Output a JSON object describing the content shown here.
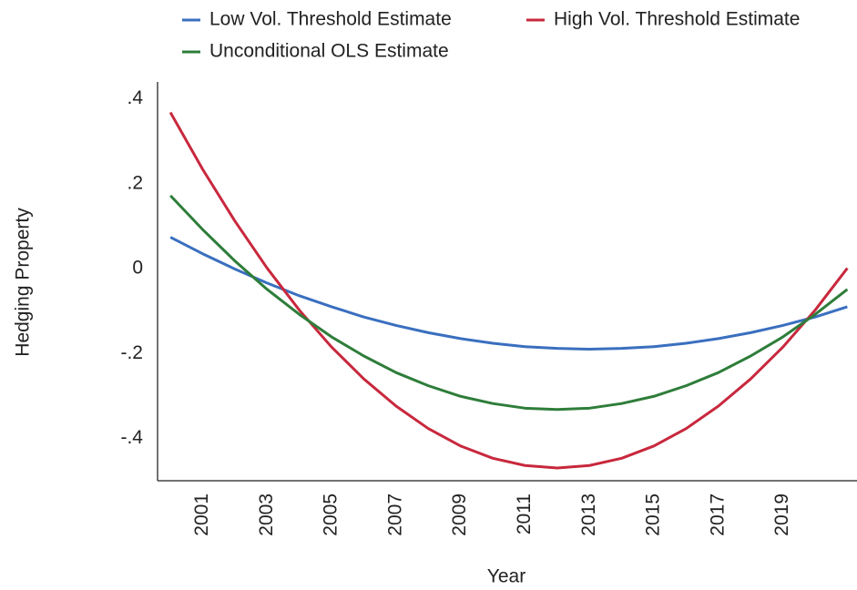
{
  "chart_data": {
    "type": "line",
    "x_label": "Year",
    "y_label": "Hedging Property",
    "x": [
      2000,
      2001,
      2002,
      2003,
      2004,
      2005,
      2006,
      2007,
      2008,
      2009,
      2010,
      2011,
      2012,
      2013,
      2014,
      2015,
      2016,
      2017,
      2018,
      2019,
      2020,
      2021
    ],
    "series": [
      {
        "name": "Low Vol. Threshold Estimate",
        "color": "#3a6fbf",
        "values": [
          0.074,
          0.035,
          -0.001,
          -0.034,
          -0.064,
          -0.09,
          -0.114,
          -0.134,
          -0.151,
          -0.165,
          -0.176,
          -0.184,
          -0.188,
          -0.19,
          -0.188,
          -0.184,
          -0.176,
          -0.165,
          -0.151,
          -0.134,
          -0.114,
          -0.09
        ]
      },
      {
        "name": "High Vol. Threshold Estimate",
        "color": "#c8283d",
        "values": [
          0.368,
          0.234,
          0.112,
          0.001,
          -0.098,
          -0.185,
          -0.26,
          -0.324,
          -0.377,
          -0.418,
          -0.447,
          -0.464,
          -0.47,
          -0.464,
          -0.447,
          -0.418,
          -0.377,
          -0.324,
          -0.26,
          -0.185,
          -0.098,
          0.001
        ]
      },
      {
        "name": "Unconditional OLS Estimate",
        "color": "#2e7d3a",
        "values": [
          0.172,
          0.092,
          0.018,
          -0.049,
          -0.108,
          -0.161,
          -0.206,
          -0.245,
          -0.276,
          -0.301,
          -0.318,
          -0.329,
          -0.332,
          -0.329,
          -0.318,
          -0.301,
          -0.276,
          -0.245,
          -0.206,
          -0.161,
          -0.108,
          -0.049
        ]
      }
    ],
    "xlim": [
      1999.6,
      2021.3
    ],
    "xticks": [
      2001,
      2003,
      2005,
      2007,
      2009,
      2011,
      2013,
      2015,
      2017,
      2019
    ],
    "ylim": [
      -0.5,
      0.44
    ],
    "yticks": [
      {
        "value": 0.4,
        "label": ".4"
      },
      {
        "value": 0.2,
        "label": ".2"
      },
      0,
      {
        "value": -0.2,
        "label": "-.2"
      },
      {
        "value": -0.4,
        "label": "-.4"
      }
    ],
    "grid": false,
    "legend_position": "top"
  }
}
